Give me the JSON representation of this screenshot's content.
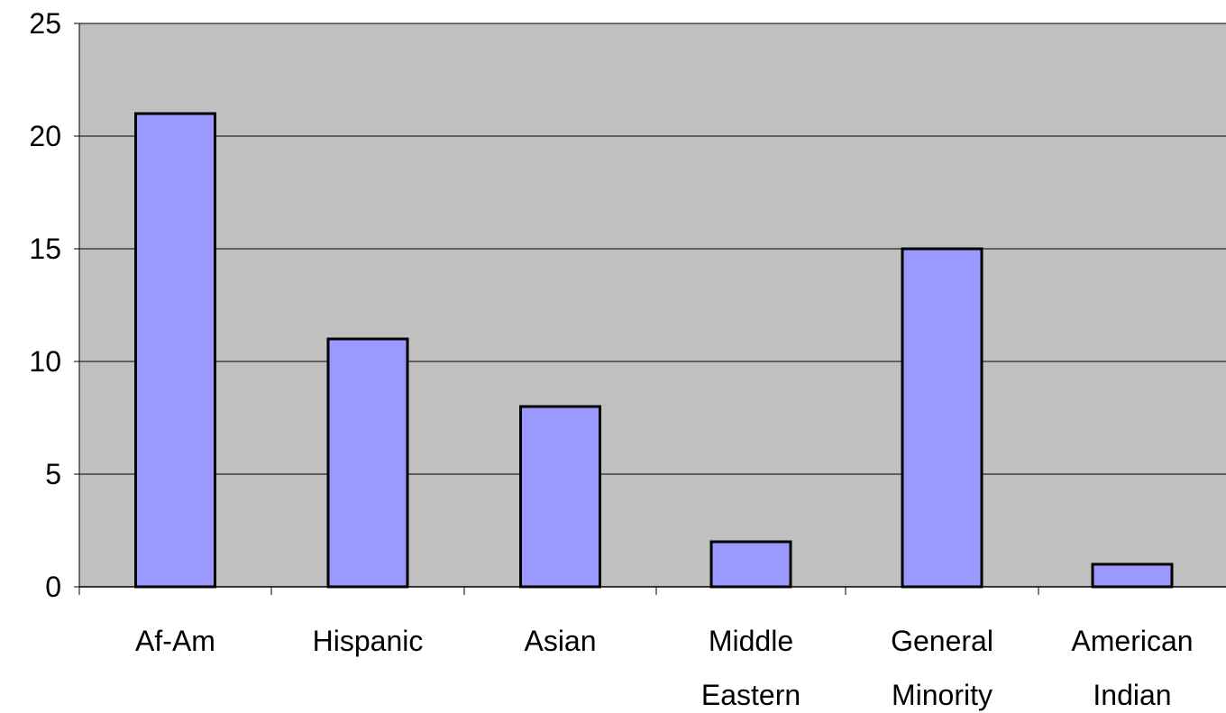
{
  "chart_data": {
    "type": "bar",
    "categories": [
      [
        "Af-Am"
      ],
      [
        "Hispanic"
      ],
      [
        "Asian"
      ],
      [
        "Middle",
        "Eastern"
      ],
      [
        "General",
        "Minority"
      ],
      [
        "American",
        "Indian"
      ]
    ],
    "values": [
      21,
      11,
      8,
      2,
      15,
      1
    ],
    "ylim": [
      0,
      25
    ],
    "yticks": [
      0,
      5,
      10,
      15,
      20,
      25
    ],
    "ytick_labels": [
      "0",
      "5",
      "10",
      "15",
      "20",
      "25"
    ],
    "grid": true,
    "title": "",
    "xlabel": "",
    "ylabel": "",
    "colors": {
      "plot_background": "#c0c0c0",
      "bar_fill": "#9999ff",
      "bar_stroke": "#000000",
      "gridline": "#000000"
    }
  }
}
